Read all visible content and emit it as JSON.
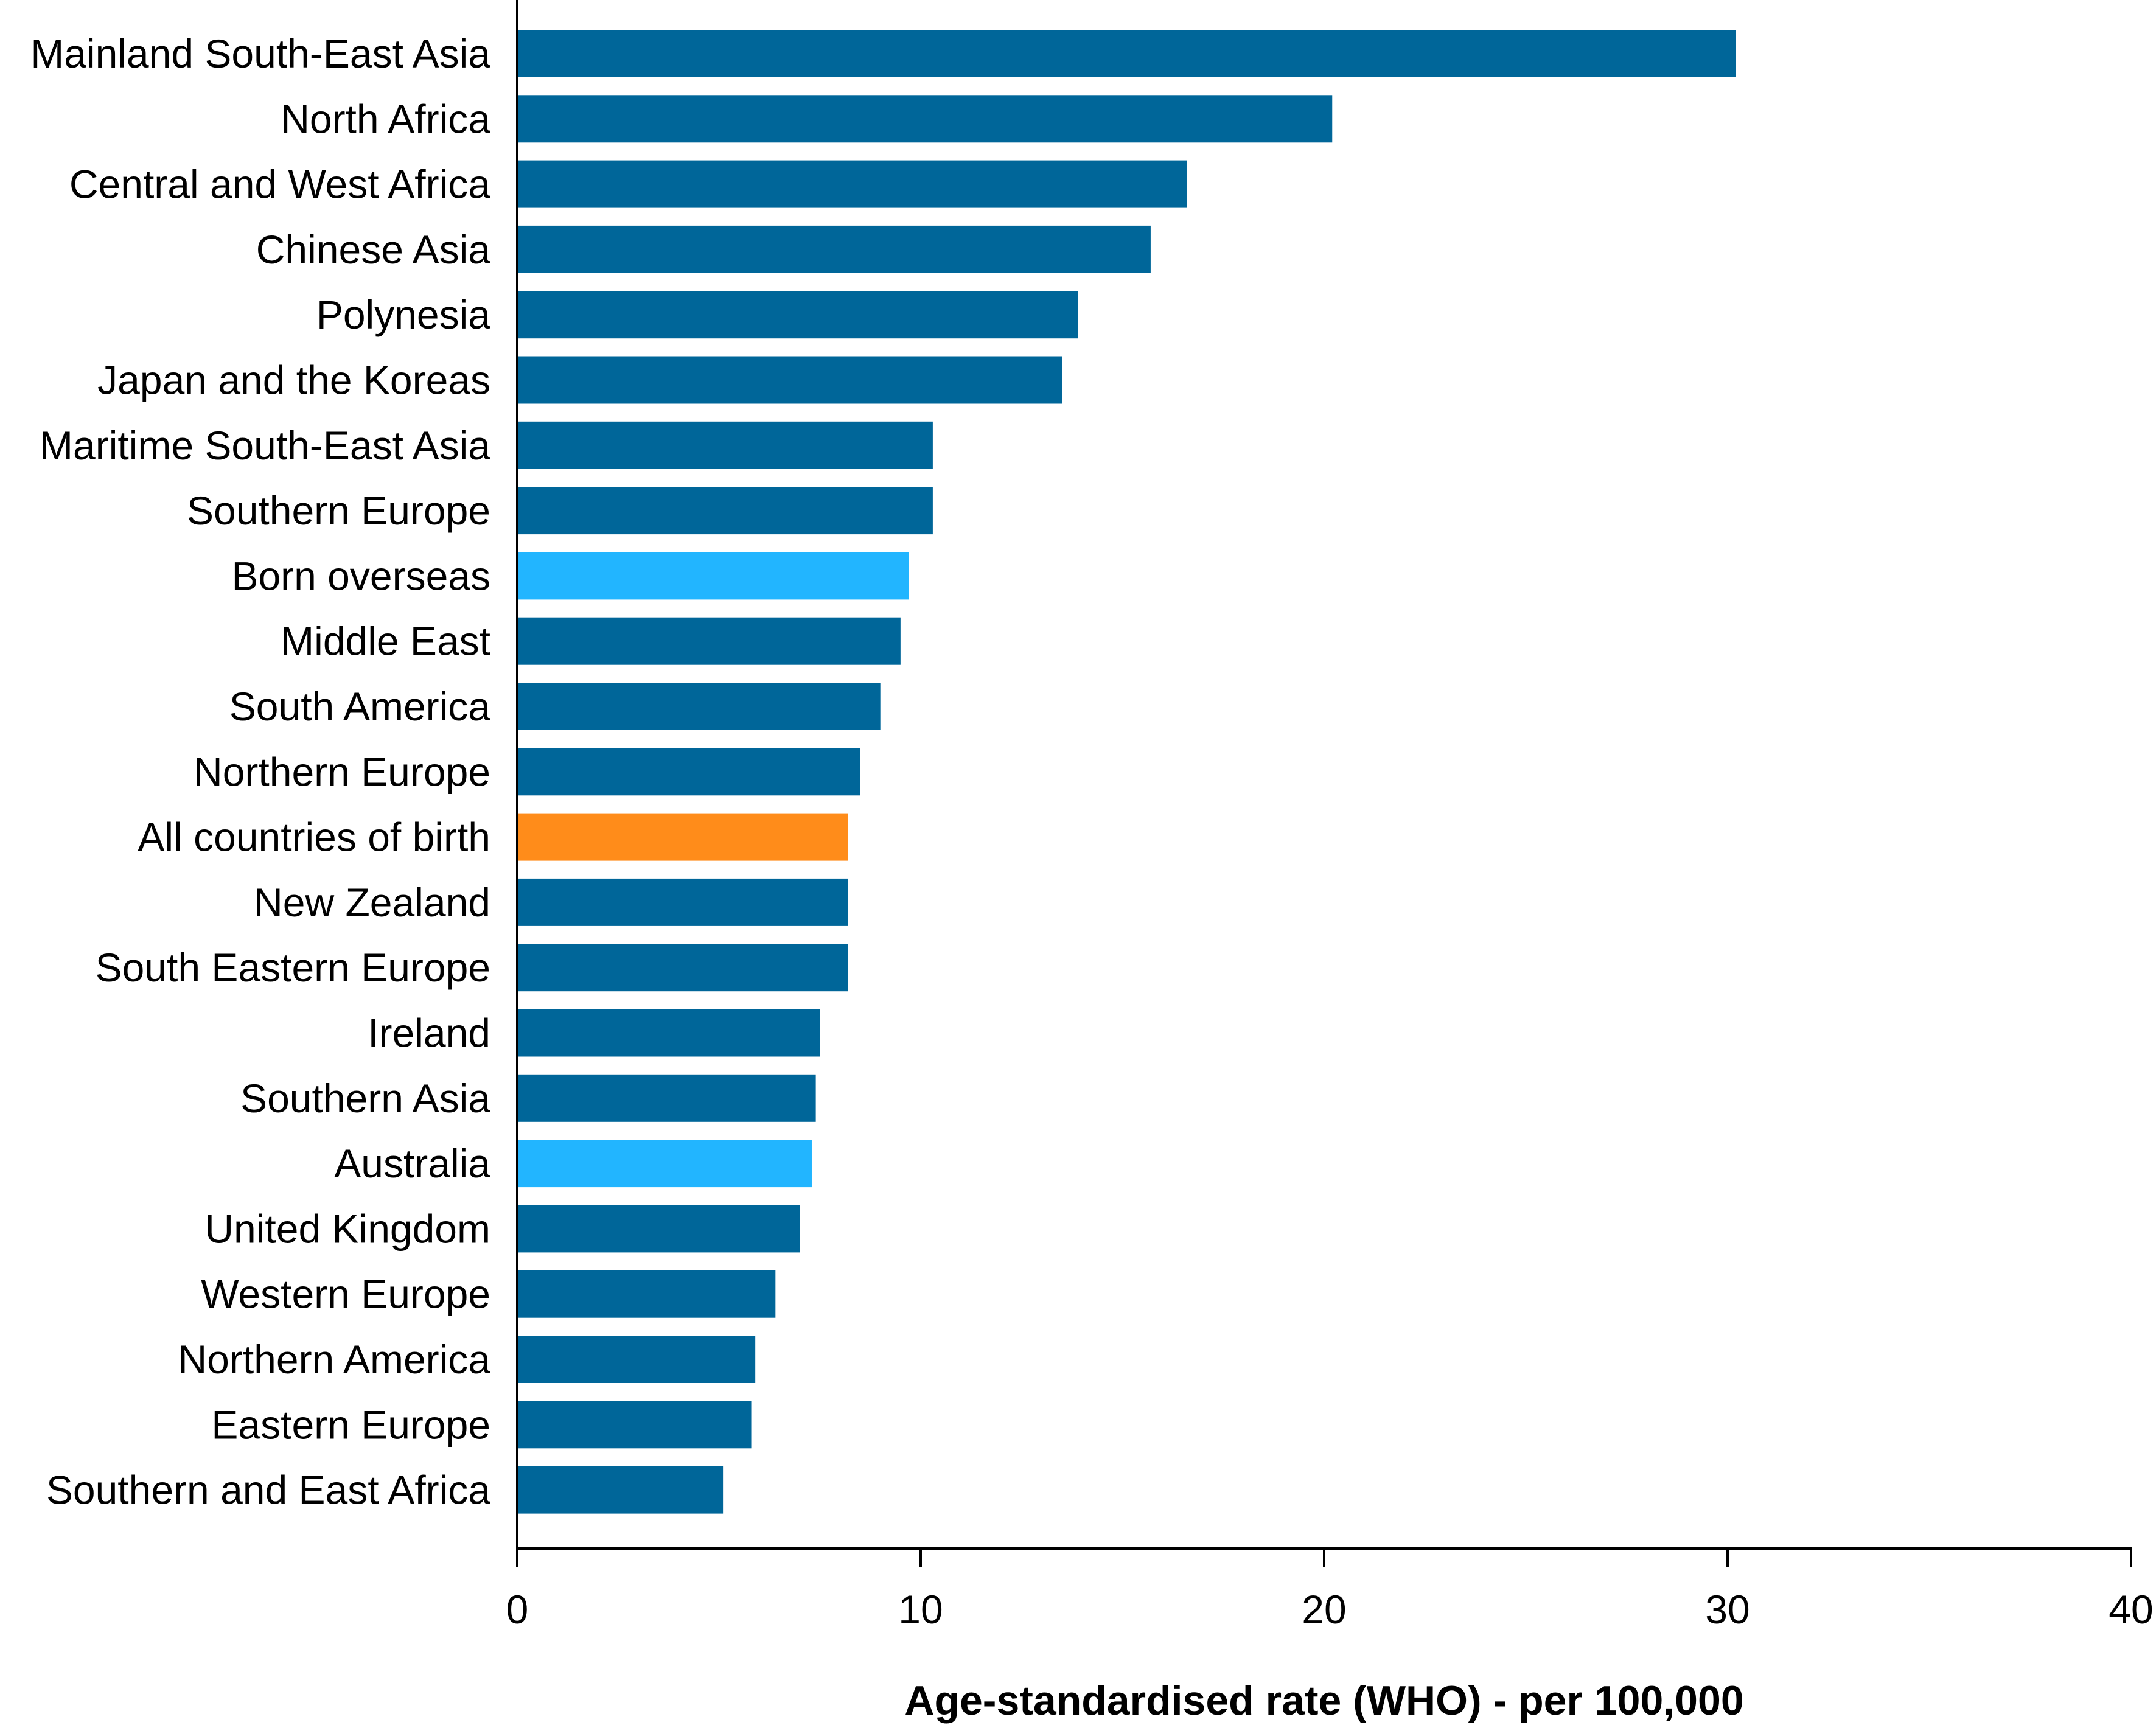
{
  "chart_data": {
    "type": "bar",
    "orientation": "horizontal",
    "xlabel": "Age-standardised rate (WHO) - per 100,000",
    "ylabel": "",
    "xlim": [
      0,
      40
    ],
    "xticks": [
      0,
      10,
      20,
      30,
      40
    ],
    "grid": false,
    "legend": "none",
    "colors": {
      "default": "#006699",
      "highlight": "#22B5FF",
      "total": "#FF8C1A"
    },
    "categories": [
      "Mainland South-East Asia",
      "North Africa",
      "Central and West Africa",
      "Chinese Asia",
      "Polynesia",
      "Japan and the Koreas",
      "Maritime South-East Asia",
      "Southern Europe",
      "Born overseas",
      "Middle East",
      "South America",
      "Northern Europe",
      "All countries of birth",
      "New Zealand",
      "South Eastern Europe",
      "Ireland",
      "Southern Asia",
      "Australia",
      "United Kingdom",
      "Western Europe",
      "Northern America",
      "Eastern Europe",
      "Southern and East Africa"
    ],
    "values": [
      30.2,
      20.2,
      16.6,
      15.7,
      13.9,
      13.5,
      10.3,
      10.3,
      9.7,
      9.5,
      9.0,
      8.5,
      8.2,
      8.2,
      8.2,
      7.5,
      7.4,
      7.3,
      7.0,
      6.4,
      5.9,
      5.8,
      5.1
    ],
    "bar_color_keys": [
      "default",
      "default",
      "default",
      "default",
      "default",
      "default",
      "default",
      "default",
      "highlight",
      "default",
      "default",
      "default",
      "total",
      "default",
      "default",
      "default",
      "default",
      "highlight",
      "default",
      "default",
      "default",
      "default",
      "default"
    ]
  }
}
